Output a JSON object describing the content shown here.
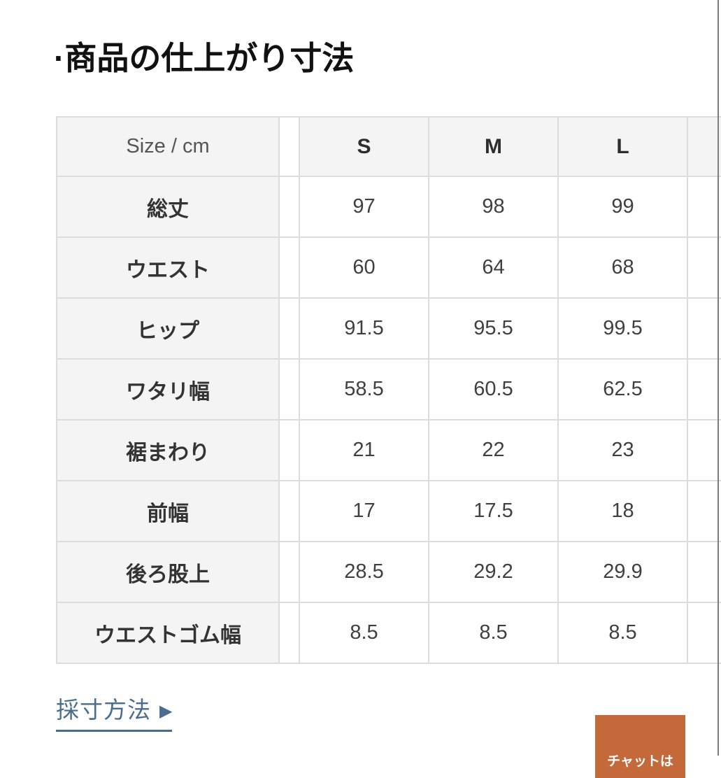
{
  "page": {
    "title": "·商品の仕上がり寸法"
  },
  "size_table": {
    "header": {
      "label": "Size / cm",
      "sizes": [
        "S",
        "M",
        "L"
      ]
    },
    "rows": [
      {
        "label": "総丈",
        "values": [
          "97",
          "98",
          "99"
        ]
      },
      {
        "label": "ウエスト",
        "values": [
          "60",
          "64",
          "68"
        ]
      },
      {
        "label": "ヒップ",
        "values": [
          "91.5",
          "95.5",
          "99.5"
        ]
      },
      {
        "label": "ワタリ幅",
        "values": [
          "58.5",
          "60.5",
          "62.5"
        ]
      },
      {
        "label": "裾まわり",
        "values": [
          "21",
          "22",
          "23"
        ]
      },
      {
        "label": "前幅",
        "values": [
          "17",
          "17.5",
          "18"
        ]
      },
      {
        "label": "後ろ股上",
        "values": [
          "28.5",
          "29.2",
          "29.9"
        ]
      },
      {
        "label": "ウエストゴム幅",
        "values": [
          "8.5",
          "8.5",
          "8.5"
        ]
      }
    ]
  },
  "links": {
    "measure_method": {
      "label": "採寸方法",
      "arrow": "▶"
    }
  },
  "chat_button": {
    "label": "チャットは"
  },
  "colors": {
    "link_blue": "#4a6d8e",
    "chat_orange": "#c4693a",
    "header_bg": "#f4f4f4",
    "table_border": "#dcdcdc",
    "title_text": "#111111"
  }
}
